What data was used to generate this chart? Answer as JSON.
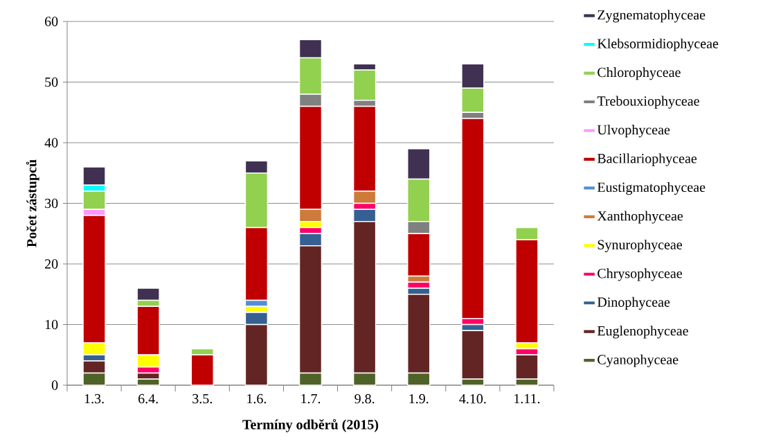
{
  "chart_data": {
    "type": "bar",
    "stacked": true,
    "xlabel": "Termíny odběrů (2015)",
    "ylabel": "Počet zástupců",
    "categories": [
      "1.3.",
      "6.4.",
      "3.5.",
      "1.6.",
      "1.7.",
      "9.8.",
      "1.9.",
      "4.10.",
      "1.11."
    ],
    "ylim": [
      0,
      60
    ],
    "yticks": [
      0,
      10,
      20,
      30,
      40,
      50,
      60
    ],
    "grid": "y",
    "legend": "right",
    "series": [
      {
        "name": "Cyanophyceae",
        "color": "#4f6228",
        "values": [
          2,
          1,
          0,
          0,
          2,
          2,
          2,
          1,
          1
        ]
      },
      {
        "name": "Euglenophyceae",
        "color": "#632523",
        "values": [
          2,
          1,
          0,
          10,
          21,
          25,
          13,
          8,
          4
        ]
      },
      {
        "name": "Dinophyceae",
        "color": "#366092",
        "values": [
          1,
          0,
          0,
          2,
          2,
          2,
          1,
          1,
          0
        ]
      },
      {
        "name": "Chrysophyceae",
        "color": "#ff0066",
        "values": [
          0,
          1,
          0,
          0,
          1,
          1,
          1,
          1,
          1
        ]
      },
      {
        "name": "Synurophyceae",
        "color": "#ffff00",
        "values": [
          2,
          2,
          0,
          1,
          1,
          0,
          0,
          0,
          1
        ]
      },
      {
        "name": "Xanthophyceae",
        "color": "#cd7b3a",
        "values": [
          0,
          0,
          0,
          0,
          2,
          2,
          1,
          0,
          0
        ]
      },
      {
        "name": "Eustigmatophyceae",
        "color": "#558ed5",
        "values": [
          0,
          0,
          0,
          1,
          0,
          0,
          0,
          0,
          0
        ]
      },
      {
        "name": "Bacillariophyceae",
        "color": "#c00000",
        "values": [
          21,
          8,
          5,
          12,
          17,
          14,
          7,
          33,
          17
        ]
      },
      {
        "name": "Ulvophyceae",
        "color": "#ff99ff",
        "values": [
          1,
          0,
          0,
          0,
          0,
          0,
          0,
          0,
          0
        ]
      },
      {
        "name": "Trebouxiophyceae",
        "color": "#808080",
        "values": [
          0,
          0,
          0,
          0,
          2,
          1,
          2,
          1,
          0
        ]
      },
      {
        "name": "Chlorophyceae",
        "color": "#92d050",
        "values": [
          3,
          1,
          1,
          9,
          6,
          5,
          7,
          4,
          2
        ]
      },
      {
        "name": "Klebsormidiophyceae",
        "color": "#00ffff",
        "values": [
          1,
          0,
          0,
          0,
          0,
          0,
          0,
          0,
          0
        ]
      },
      {
        "name": "Zygnematophyceae",
        "color": "#403152",
        "values": [
          3,
          2,
          0,
          2,
          3,
          1,
          5,
          4,
          0
        ]
      }
    ]
  }
}
